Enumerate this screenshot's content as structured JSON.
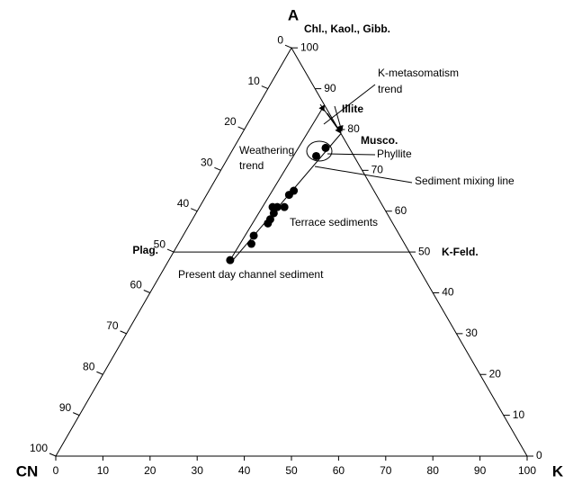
{
  "chart_data": {
    "type": "ternary",
    "vertices": {
      "top": "A",
      "left": "CN",
      "right": "K"
    },
    "range": [
      0,
      100
    ],
    "ticks": [
      0,
      10,
      20,
      30,
      40,
      50,
      60,
      70,
      80,
      90,
      100
    ],
    "points": {
      "color": "#000000",
      "a": [
        48,
        52,
        54,
        57,
        58,
        59.5,
        61,
        61,
        61,
        64,
        65,
        73.5,
        75.5
      ],
      "k": [
        13,
        15.5,
        15,
        16.5,
        16.5,
        16.5,
        15.5,
        16.5,
        18,
        17.5,
        18,
        18.5,
        19.5
      ]
    },
    "minerals": [
      {
        "label": "Chl., Kaol., Gibb.",
        "a": 100,
        "k": 0
      },
      {
        "label": "Illite",
        "a": 86,
        "k": 14
      },
      {
        "label": "Musco.",
        "a": 79,
        "k": 21
      },
      {
        "label": "Plag.",
        "a": 50,
        "k": 0
      },
      {
        "label": "K-Feld.",
        "a": 50,
        "k": 50
      }
    ],
    "annotations": [
      {
        "lines": [
          "K-metasomatism",
          "trend"
        ]
      },
      {
        "lines": [
          "Weathering",
          "trend"
        ]
      },
      {
        "lines": [
          "Phyllite"
        ]
      },
      {
        "lines": [
          "Sediment mixing line"
        ]
      },
      {
        "lines": [
          "Terrace sediments"
        ]
      },
      {
        "lines": [
          "Present day channel sediment"
        ]
      }
    ]
  }
}
